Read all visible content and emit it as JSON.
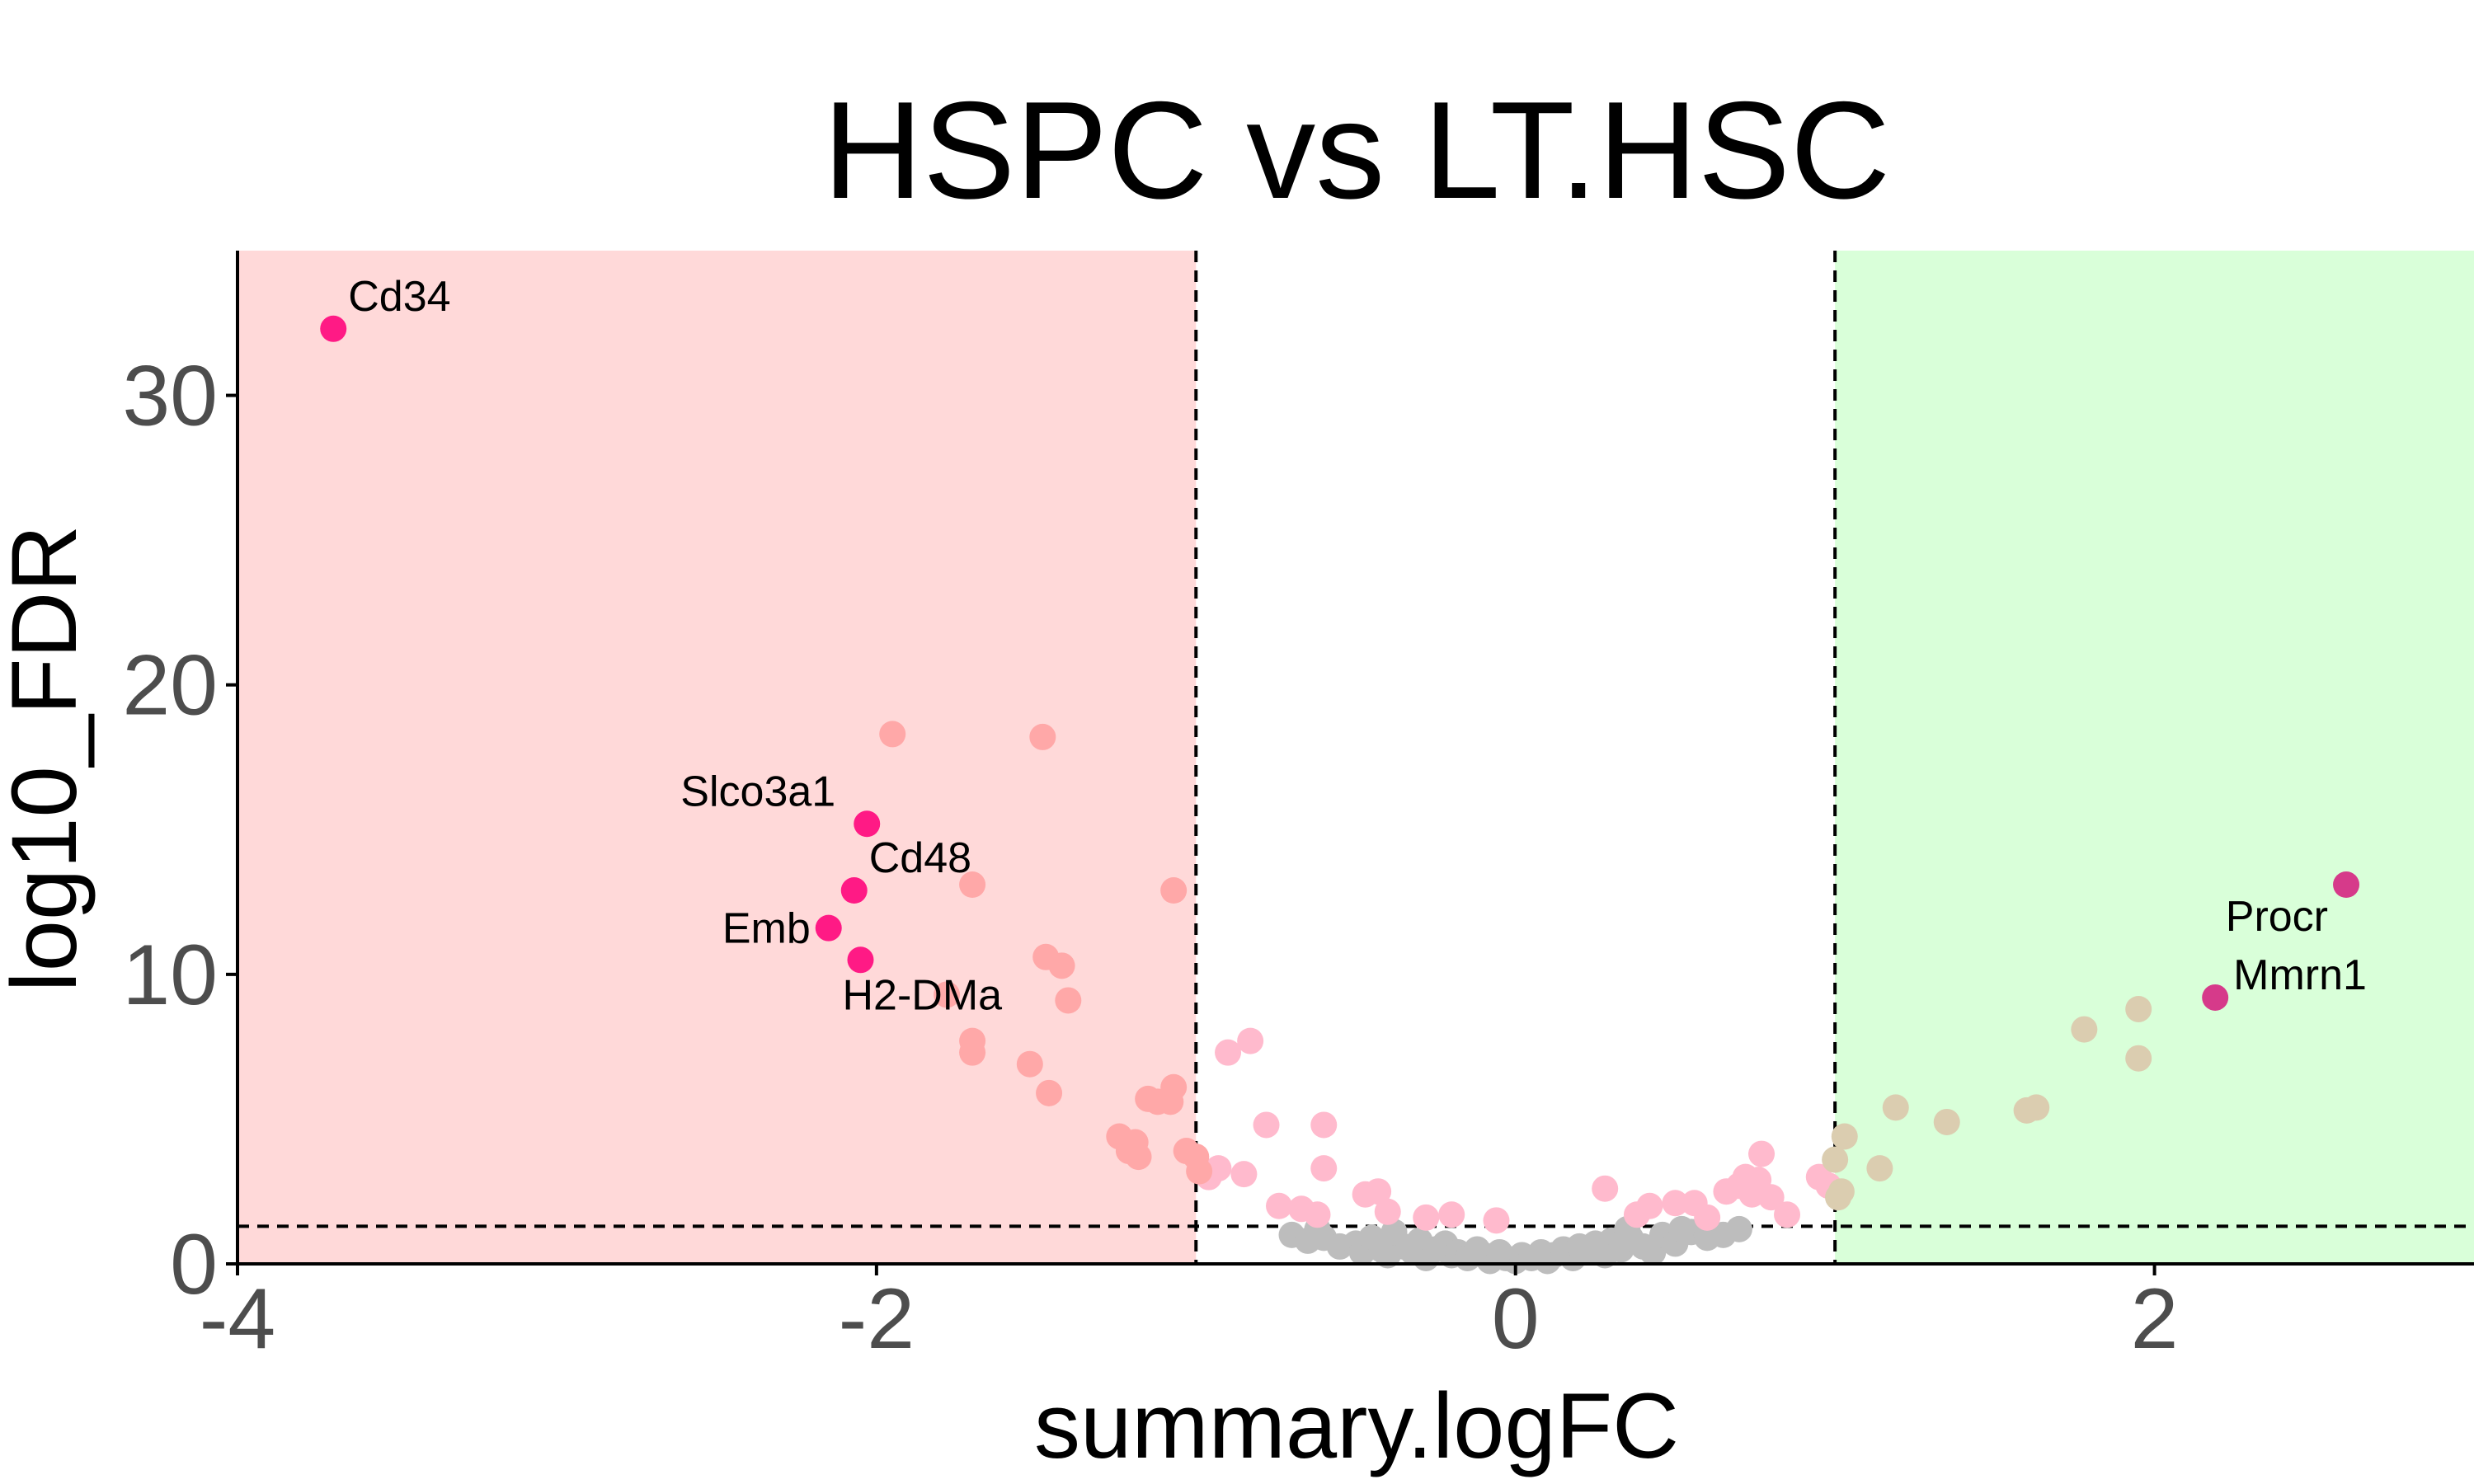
{
  "chart_data": {
    "type": "scatter",
    "title": "HSPC vs LT.HSC",
    "xlabel": "summary.logFC",
    "ylabel": "log10_FDR",
    "xlim": [
      -4,
      3
    ],
    "ylim": [
      0,
      35
    ],
    "x_ticks": [
      -4,
      -2,
      0,
      2
    ],
    "x_tick_labels": [
      "-4",
      "-2",
      "0",
      "2"
    ],
    "y_ticks": [
      0,
      10,
      20,
      30
    ],
    "y_tick_labels": [
      "0",
      "10",
      "20",
      "30"
    ],
    "grid": false,
    "thresholds": {
      "logFC": [
        -1,
        1
      ],
      "log10_FDR": 1.3
    },
    "regions": [
      {
        "x_range": [
          -4,
          -1
        ],
        "color": "#ffd9d9"
      },
      {
        "x_range": [
          1,
          3
        ],
        "color": "#d9ffd9"
      }
    ],
    "colors": {
      "highlight_down": "#ff1a85",
      "highlight_up": "#d63a8a",
      "sig_down": "#ffa8a8",
      "sig_mid": "#ffbacd",
      "sig_up": "#dbcdb0",
      "nonsig": "#bdbdbd",
      "threshold_line": "#000000"
    },
    "highlighted_genes": [
      {
        "gene": "Cd34",
        "x": -3.7,
        "y": 32.3
      },
      {
        "gene": "Slco3a1",
        "x": -2.03,
        "y": 15.2
      },
      {
        "gene": "Cd48",
        "x": -2.07,
        "y": 12.9
      },
      {
        "gene": "Emb",
        "x": -2.15,
        "y": 11.6
      },
      {
        "gene": "H2-DMa",
        "x": -2.05,
        "y": 10.5
      },
      {
        "gene": "Procr",
        "x": 2.6,
        "y": 13.1
      },
      {
        "gene": "Mmrn1",
        "x": 2.19,
        "y": 9.2
      }
    ],
    "series": [
      {
        "group": "sig_down",
        "points": [
          [
            -1.95,
            18.3
          ],
          [
            -1.48,
            18.2
          ],
          [
            -1.07,
            12.9
          ],
          [
            -1.7,
            13.1
          ],
          [
            -1.47,
            10.6
          ],
          [
            -1.42,
            10.3
          ],
          [
            -1.4,
            9.1
          ],
          [
            -1.78,
            9.3
          ],
          [
            -1.7,
            7.7
          ],
          [
            -1.7,
            7.3
          ],
          [
            -1.52,
            6.9
          ],
          [
            -1.46,
            5.9
          ],
          [
            -1.07,
            6.1
          ],
          [
            -1.08,
            5.6
          ],
          [
            -1.15,
            5.7
          ],
          [
            -1.12,
            5.6
          ],
          [
            -1.24,
            4.4
          ],
          [
            -1.19,
            4.2
          ],
          [
            -1.21,
            3.9
          ],
          [
            -1.18,
            3.7
          ],
          [
            -1.03,
            3.9
          ],
          [
            -1.0,
            3.7
          ],
          [
            -0.99,
            3.2
          ]
        ]
      },
      {
        "group": "sig_mid",
        "points": [
          [
            -0.96,
            3.0
          ],
          [
            -0.93,
            3.3
          ],
          [
            -0.9,
            7.3
          ],
          [
            -0.83,
            7.7
          ],
          [
            -0.85,
            3.1
          ],
          [
            -0.78,
            4.8
          ],
          [
            -0.6,
            4.8
          ],
          [
            -0.6,
            3.3
          ],
          [
            -0.74,
            2.0
          ],
          [
            -0.67,
            1.9
          ],
          [
            -0.62,
            1.7
          ],
          [
            -0.47,
            2.4
          ],
          [
            -0.43,
            2.5
          ],
          [
            -0.4,
            1.8
          ],
          [
            -0.28,
            1.6
          ],
          [
            -0.2,
            1.7
          ],
          [
            -0.06,
            1.5
          ],
          [
            0.28,
            2.6
          ],
          [
            0.38,
            1.7
          ],
          [
            0.42,
            2.0
          ],
          [
            0.5,
            2.1
          ],
          [
            0.56,
            2.1
          ],
          [
            0.6,
            1.6
          ],
          [
            0.66,
            2.5
          ],
          [
            0.7,
            2.7
          ],
          [
            0.72,
            3.0
          ],
          [
            0.74,
            2.4
          ],
          [
            0.77,
            3.8
          ],
          [
            0.76,
            2.9
          ],
          [
            0.8,
            2.3
          ],
          [
            0.85,
            1.7
          ],
          [
            0.95,
            3.0
          ],
          [
            0.98,
            2.7
          ]
        ]
      },
      {
        "group": "sig_up",
        "points": [
          [
            1.03,
            4.4
          ],
          [
            1.0,
            3.6
          ],
          [
            1.02,
            2.5
          ],
          [
            1.01,
            2.3
          ],
          [
            1.14,
            3.3
          ],
          [
            1.19,
            5.4
          ],
          [
            1.35,
            4.9
          ],
          [
            1.6,
            5.3
          ],
          [
            1.63,
            5.4
          ],
          [
            1.78,
            8.1
          ],
          [
            1.95,
            8.8
          ],
          [
            1.95,
            7.1
          ]
        ]
      },
      {
        "group": "nonsig",
        "points": [
          [
            -0.7,
            1.0
          ],
          [
            -0.65,
            0.8
          ],
          [
            -0.6,
            0.9
          ],
          [
            -0.55,
            0.6
          ],
          [
            -0.5,
            0.7
          ],
          [
            -0.48,
            0.4
          ],
          [
            -0.45,
            0.9
          ],
          [
            -0.42,
            0.5
          ],
          [
            -0.4,
            0.3
          ],
          [
            -0.35,
            0.6
          ],
          [
            -0.32,
            0.4
          ],
          [
            -0.3,
            0.8
          ],
          [
            -0.28,
            0.2
          ],
          [
            -0.25,
            0.5
          ],
          [
            -0.22,
            0.7
          ],
          [
            -0.2,
            0.3
          ],
          [
            -0.18,
            0.4
          ],
          [
            -0.15,
            0.2
          ],
          [
            -0.12,
            0.5
          ],
          [
            -0.1,
            0.3
          ],
          [
            -0.08,
            0.1
          ],
          [
            -0.05,
            0.4
          ],
          [
            -0.03,
            0.2
          ],
          [
            0.0,
            0.1
          ],
          [
            0.02,
            0.3
          ],
          [
            0.05,
            0.2
          ],
          [
            0.08,
            0.4
          ],
          [
            0.1,
            0.1
          ],
          [
            0.12,
            0.3
          ],
          [
            0.15,
            0.5
          ],
          [
            0.18,
            0.2
          ],
          [
            0.2,
            0.6
          ],
          [
            0.22,
            0.4
          ],
          [
            0.25,
            0.7
          ],
          [
            0.28,
            0.3
          ],
          [
            0.3,
            0.8
          ],
          [
            0.33,
            0.5
          ],
          [
            0.36,
            0.9
          ],
          [
            0.4,
            0.6
          ],
          [
            0.43,
            0.4
          ],
          [
            0.46,
            1.0
          ],
          [
            0.5,
            0.7
          ],
          [
            0.55,
            1.1
          ],
          [
            0.6,
            0.9
          ],
          [
            0.65,
            1.0
          ],
          [
            0.7,
            1.2
          ],
          [
            -0.62,
            1.2
          ],
          [
            -0.38,
            1.1
          ],
          [
            0.35,
            1.2
          ],
          [
            0.52,
            1.2
          ]
        ]
      }
    ]
  }
}
